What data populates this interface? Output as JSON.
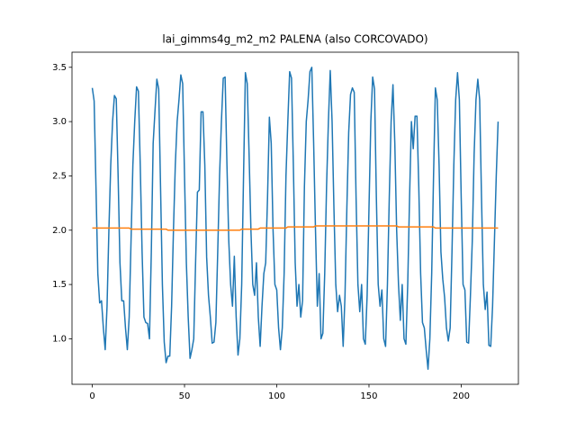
{
  "chart_data": {
    "type": "line",
    "title": "lai_gimms4g_m2_m2 PALENA (also CORCOVADO)",
    "x": [
      0,
      1,
      2,
      3,
      4,
      5,
      6,
      7,
      8,
      9,
      10,
      11,
      12,
      13,
      14,
      15,
      16,
      17,
      18,
      19,
      20,
      21,
      22,
      23,
      24,
      25,
      26,
      27,
      28,
      29,
      30,
      31,
      32,
      33,
      34,
      35,
      36,
      37,
      38,
      39,
      40,
      41,
      42,
      43,
      44,
      45,
      46,
      47,
      48,
      49,
      50,
      51,
      52,
      53,
      54,
      55,
      56,
      57,
      58,
      59,
      60,
      61,
      62,
      63,
      64,
      65,
      66,
      67,
      68,
      69,
      70,
      71,
      72,
      73,
      74,
      75,
      76,
      77,
      78,
      79,
      80,
      81,
      82,
      83,
      84,
      85,
      86,
      87,
      88,
      89,
      90,
      91,
      92,
      93,
      94,
      95,
      96,
      97,
      98,
      99,
      100,
      101,
      102,
      103,
      104,
      105,
      106,
      107,
      108,
      109,
      110,
      111,
      112,
      113,
      114,
      115,
      116,
      117,
      118,
      119,
      120,
      121,
      122,
      123,
      124,
      125,
      126,
      127,
      128,
      129,
      130,
      131,
      132,
      133,
      134,
      135,
      136,
      137,
      138,
      139,
      140,
      141,
      142,
      143,
      144,
      145,
      146,
      147,
      148,
      149,
      150,
      151,
      152,
      153,
      154,
      155,
      156,
      157,
      158,
      159,
      160,
      161,
      162,
      163,
      164,
      165,
      166,
      167,
      168,
      169,
      170,
      171,
      172,
      173,
      174,
      175,
      176,
      177,
      178,
      179,
      180,
      181,
      182,
      183,
      184,
      185,
      186,
      187,
      188,
      189,
      190,
      191,
      192,
      193,
      194,
      195,
      196,
      197,
      198,
      199,
      200,
      201,
      202,
      203,
      204,
      205,
      206,
      207,
      208,
      209,
      210,
      211,
      212,
      213,
      214,
      215,
      216,
      217,
      218,
      219,
      220
    ],
    "series": [
      {
        "color": "#1f77b4",
        "values": [
          3.31,
          3.19,
          2.4,
          1.6,
          1.33,
          1.35,
          1.1,
          0.9,
          1.3,
          2.0,
          2.6,
          3.0,
          3.24,
          3.21,
          2.5,
          1.7,
          1.35,
          1.35,
          1.1,
          0.9,
          1.2,
          1.9,
          2.6,
          3.0,
          3.32,
          3.28,
          2.6,
          1.8,
          1.2,
          1.15,
          1.14,
          1.0,
          1.8,
          2.8,
          3.1,
          3.39,
          3.3,
          2.4,
          1.5,
          0.97,
          0.78,
          0.84,
          0.84,
          1.3,
          2.0,
          2.6,
          3.0,
          3.2,
          3.43,
          3.35,
          2.5,
          1.7,
          1.2,
          0.82,
          0.9,
          1.0,
          1.7,
          2.35,
          2.37,
          3.09,
          3.09,
          2.6,
          1.75,
          1.4,
          1.2,
          0.96,
          0.97,
          1.15,
          1.8,
          2.5,
          3.0,
          3.4,
          3.41,
          2.6,
          1.9,
          1.5,
          1.3,
          1.76,
          1.2,
          0.85,
          1.0,
          1.5,
          2.5,
          3.45,
          3.35,
          2.7,
          2.0,
          1.5,
          1.4,
          1.7,
          1.2,
          0.93,
          1.3,
          1.6,
          1.7,
          2.3,
          3.04,
          2.8,
          2.0,
          1.5,
          1.45,
          1.1,
          0.9,
          1.1,
          1.6,
          2.5,
          3.0,
          3.46,
          3.4,
          2.6,
          1.7,
          1.3,
          1.5,
          1.2,
          1.35,
          2.4,
          3.0,
          3.2,
          3.46,
          3.5,
          2.8,
          2.0,
          1.3,
          1.6,
          1.0,
          1.05,
          1.6,
          2.4,
          3.0,
          3.47,
          3.0,
          2.2,
          1.5,
          1.25,
          1.4,
          1.3,
          0.93,
          1.4,
          2.2,
          2.9,
          3.25,
          3.31,
          3.27,
          2.3,
          1.5,
          1.25,
          1.5,
          1.0,
          0.95,
          1.4,
          2.2,
          3.0,
          3.41,
          3.3,
          2.3,
          1.5,
          1.3,
          1.45,
          1.0,
          0.93,
          1.5,
          2.3,
          3.0,
          3.34,
          2.8,
          2.0,
          1.5,
          1.17,
          1.5,
          1.0,
          0.95,
          1.5,
          2.3,
          3.0,
          2.75,
          3.05,
          3.05,
          2.4,
          1.6,
          1.15,
          1.1,
          0.9,
          0.72,
          1.0,
          1.6,
          2.5,
          3.31,
          3.2,
          2.6,
          1.8,
          1.55,
          1.38,
          1.1,
          0.98,
          1.1,
          1.8,
          2.6,
          3.2,
          3.45,
          3.2,
          2.3,
          1.5,
          1.45,
          0.97,
          0.96,
          1.4,
          1.9,
          2.7,
          3.2,
          3.39,
          3.2,
          2.3,
          1.5,
          1.27,
          1.43,
          0.94,
          0.93,
          1.3,
          1.9,
          2.5,
          3.0
        ]
      },
      {
        "color": "#ff7f0e",
        "values": [
          2.02,
          2.02,
          2.02,
          2.02,
          2.02,
          2.02,
          2.02,
          2.02,
          2.02,
          2.02,
          2.02,
          2.02,
          2.02,
          2.02,
          2.02,
          2.02,
          2.02,
          2.02,
          2.02,
          2.02,
          2.02,
          2.01,
          2.01,
          2.01,
          2.01,
          2.01,
          2.01,
          2.01,
          2.01,
          2.01,
          2.01,
          2.01,
          2.01,
          2.01,
          2.01,
          2.01,
          2.01,
          2.01,
          2.01,
          2.01,
          2.01,
          2.0,
          2.0,
          2.0,
          2.0,
          2.0,
          2.0,
          2.0,
          2.0,
          2.0,
          2.0,
          2.0,
          2.0,
          2.0,
          2.0,
          2.0,
          2.0,
          2.0,
          2.0,
          2.0,
          2.0,
          2.0,
          2.0,
          2.0,
          2.0,
          2.0,
          2.0,
          2.0,
          2.0,
          2.0,
          2.0,
          2.0,
          2.0,
          2.0,
          2.0,
          2.0,
          2.0,
          2.0,
          2.0,
          2.0,
          2.0,
          2.01,
          2.01,
          2.01,
          2.01,
          2.01,
          2.01,
          2.01,
          2.01,
          2.01,
          2.01,
          2.02,
          2.02,
          2.02,
          2.02,
          2.02,
          2.02,
          2.02,
          2.02,
          2.02,
          2.02,
          2.02,
          2.02,
          2.02,
          2.02,
          2.02,
          2.03,
          2.03,
          2.03,
          2.03,
          2.03,
          2.03,
          2.03,
          2.03,
          2.03,
          2.03,
          2.03,
          2.03,
          2.03,
          2.03,
          2.03,
          2.04,
          2.04,
          2.04,
          2.04,
          2.04,
          2.04,
          2.04,
          2.04,
          2.04,
          2.04,
          2.04,
          2.04,
          2.04,
          2.04,
          2.04,
          2.04,
          2.04,
          2.04,
          2.04,
          2.04,
          2.04,
          2.04,
          2.04,
          2.04,
          2.04,
          2.04,
          2.04,
          2.04,
          2.04,
          2.04,
          2.04,
          2.04,
          2.04,
          2.04,
          2.04,
          2.04,
          2.04,
          2.04,
          2.04,
          2.04,
          2.04,
          2.04,
          2.04,
          2.04,
          2.04,
          2.03,
          2.03,
          2.03,
          2.03,
          2.03,
          2.03,
          2.03,
          2.03,
          2.03,
          2.03,
          2.03,
          2.03,
          2.03,
          2.03,
          2.03,
          2.03,
          2.03,
          2.03,
          2.03,
          2.03,
          2.02,
          2.02,
          2.02,
          2.02,
          2.02,
          2.02,
          2.02,
          2.02,
          2.02,
          2.02,
          2.02,
          2.02,
          2.02,
          2.02,
          2.02,
          2.02,
          2.02,
          2.02,
          2.02,
          2.02,
          2.02,
          2.02,
          2.02,
          2.02,
          2.02,
          2.02,
          2.02,
          2.02,
          2.02,
          2.02,
          2.02,
          2.02,
          2.02,
          2.02,
          2.02
        ]
      }
    ],
    "xlim": [
      -11,
      231
    ],
    "xticks": [
      0,
      50,
      100,
      150,
      200
    ],
    "ylim": [
      0.581,
      3.639
    ],
    "yticks": [
      {
        "value": 1,
        "label": "1.0"
      },
      1.5,
      {
        "value": 2,
        "label": "2.0"
      },
      2.5,
      {
        "value": 3,
        "label": "3.0"
      },
      3.5
    ]
  }
}
